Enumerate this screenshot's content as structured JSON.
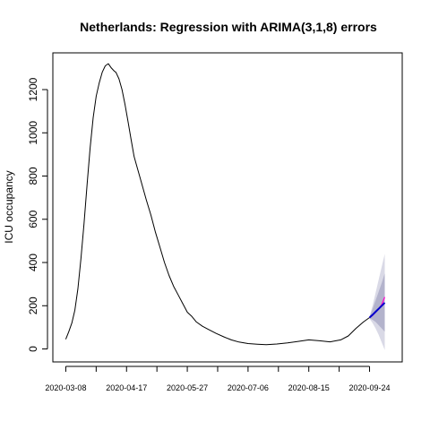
{
  "chart_data": {
    "type": "line",
    "title": "Netherlands: Regression with ARIMA(3,1,8) errors",
    "xlabel": "",
    "ylabel": "ICU occupancy",
    "x_start": "2020-03-08",
    "x_ticks": [
      "2020-03-08",
      "2020-04-17",
      "2020-05-27",
      "2020-07-06",
      "2020-08-15",
      "2020-09-24"
    ],
    "y_ticks": [
      0,
      200,
      400,
      600,
      800,
      1000,
      1200
    ],
    "xlim": [
      "2020-03-08",
      "2020-10-07"
    ],
    "ylim": [
      -60,
      1370
    ],
    "grid": false,
    "colors": {
      "observed": "#000000",
      "forecast": "#0000cc",
      "actual": "#ff00cc",
      "band_outer": "#d9d9e6",
      "band_inner": "#b3b3cc"
    },
    "series": [
      {
        "role": "observed",
        "x": [
          "2020-03-08",
          "2020-03-10",
          "2020-03-12",
          "2020-03-14",
          "2020-03-16",
          "2020-03-18",
          "2020-03-20",
          "2020-03-22",
          "2020-03-24",
          "2020-03-26",
          "2020-03-28",
          "2020-03-30",
          "2020-04-01",
          "2020-04-03",
          "2020-04-05",
          "2020-04-07",
          "2020-04-09",
          "2020-04-10",
          "2020-04-12",
          "2020-04-14",
          "2020-04-16",
          "2020-04-18",
          "2020-04-20",
          "2020-04-22",
          "2020-04-24",
          "2020-04-26",
          "2020-04-28",
          "2020-04-30",
          "2020-05-03",
          "2020-05-06",
          "2020-05-09",
          "2020-05-12",
          "2020-05-15",
          "2020-05-18",
          "2020-05-21",
          "2020-05-24",
          "2020-05-27",
          "2020-05-30",
          "2020-06-02",
          "2020-06-06",
          "2020-06-10",
          "2020-06-15",
          "2020-06-20",
          "2020-06-25",
          "2020-06-30",
          "2020-07-06",
          "2020-07-12",
          "2020-07-18",
          "2020-07-25",
          "2020-08-01",
          "2020-08-08",
          "2020-08-15",
          "2020-08-22",
          "2020-08-29",
          "2020-09-05",
          "2020-09-10",
          "2020-09-15",
          "2020-09-20",
          "2020-09-24"
        ],
        "values": [
          45,
          80,
          120,
          180,
          280,
          420,
          580,
          760,
          930,
          1070,
          1170,
          1230,
          1280,
          1310,
          1320,
          1300,
          1285,
          1280,
          1250,
          1200,
          1130,
          1050,
          970,
          890,
          840,
          790,
          740,
          690,
          620,
          540,
          470,
          400,
          340,
          290,
          250,
          210,
          170,
          150,
          125,
          105,
          90,
          72,
          56,
          42,
          32,
          25,
          22,
          20,
          23,
          28,
          35,
          42,
          38,
          33,
          42,
          60,
          95,
          125,
          145
        ]
      },
      {
        "role": "actual",
        "x": [
          "2020-09-24",
          "2020-09-26",
          "2020-09-28",
          "2020-09-30",
          "2020-10-02",
          "2020-10-04"
        ],
        "values": [
          145,
          155,
          170,
          185,
          205,
          240
        ]
      },
      {
        "role": "forecast",
        "x": [
          "2020-09-24",
          "2020-09-26",
          "2020-09-28",
          "2020-09-30",
          "2020-10-02",
          "2020-10-04"
        ],
        "values": [
          145,
          158,
          172,
          186,
          200,
          214
        ]
      }
    ],
    "intervals": [
      {
        "level": "outer",
        "x": [
          "2020-09-24",
          "2020-09-26",
          "2020-09-28",
          "2020-09-30",
          "2020-10-02",
          "2020-10-04"
        ],
        "lower": [
          140,
          120,
          95,
          65,
          30,
          -5
        ],
        "upper": [
          150,
          200,
          260,
          320,
          380,
          440
        ]
      },
      {
        "level": "inner",
        "x": [
          "2020-09-24",
          "2020-09-26",
          "2020-09-28",
          "2020-09-30",
          "2020-10-02",
          "2020-10-04"
        ],
        "lower": [
          142,
          135,
          125,
          110,
          95,
          80
        ],
        "upper": [
          148,
          185,
          225,
          265,
          305,
          350
        ]
      }
    ]
  }
}
